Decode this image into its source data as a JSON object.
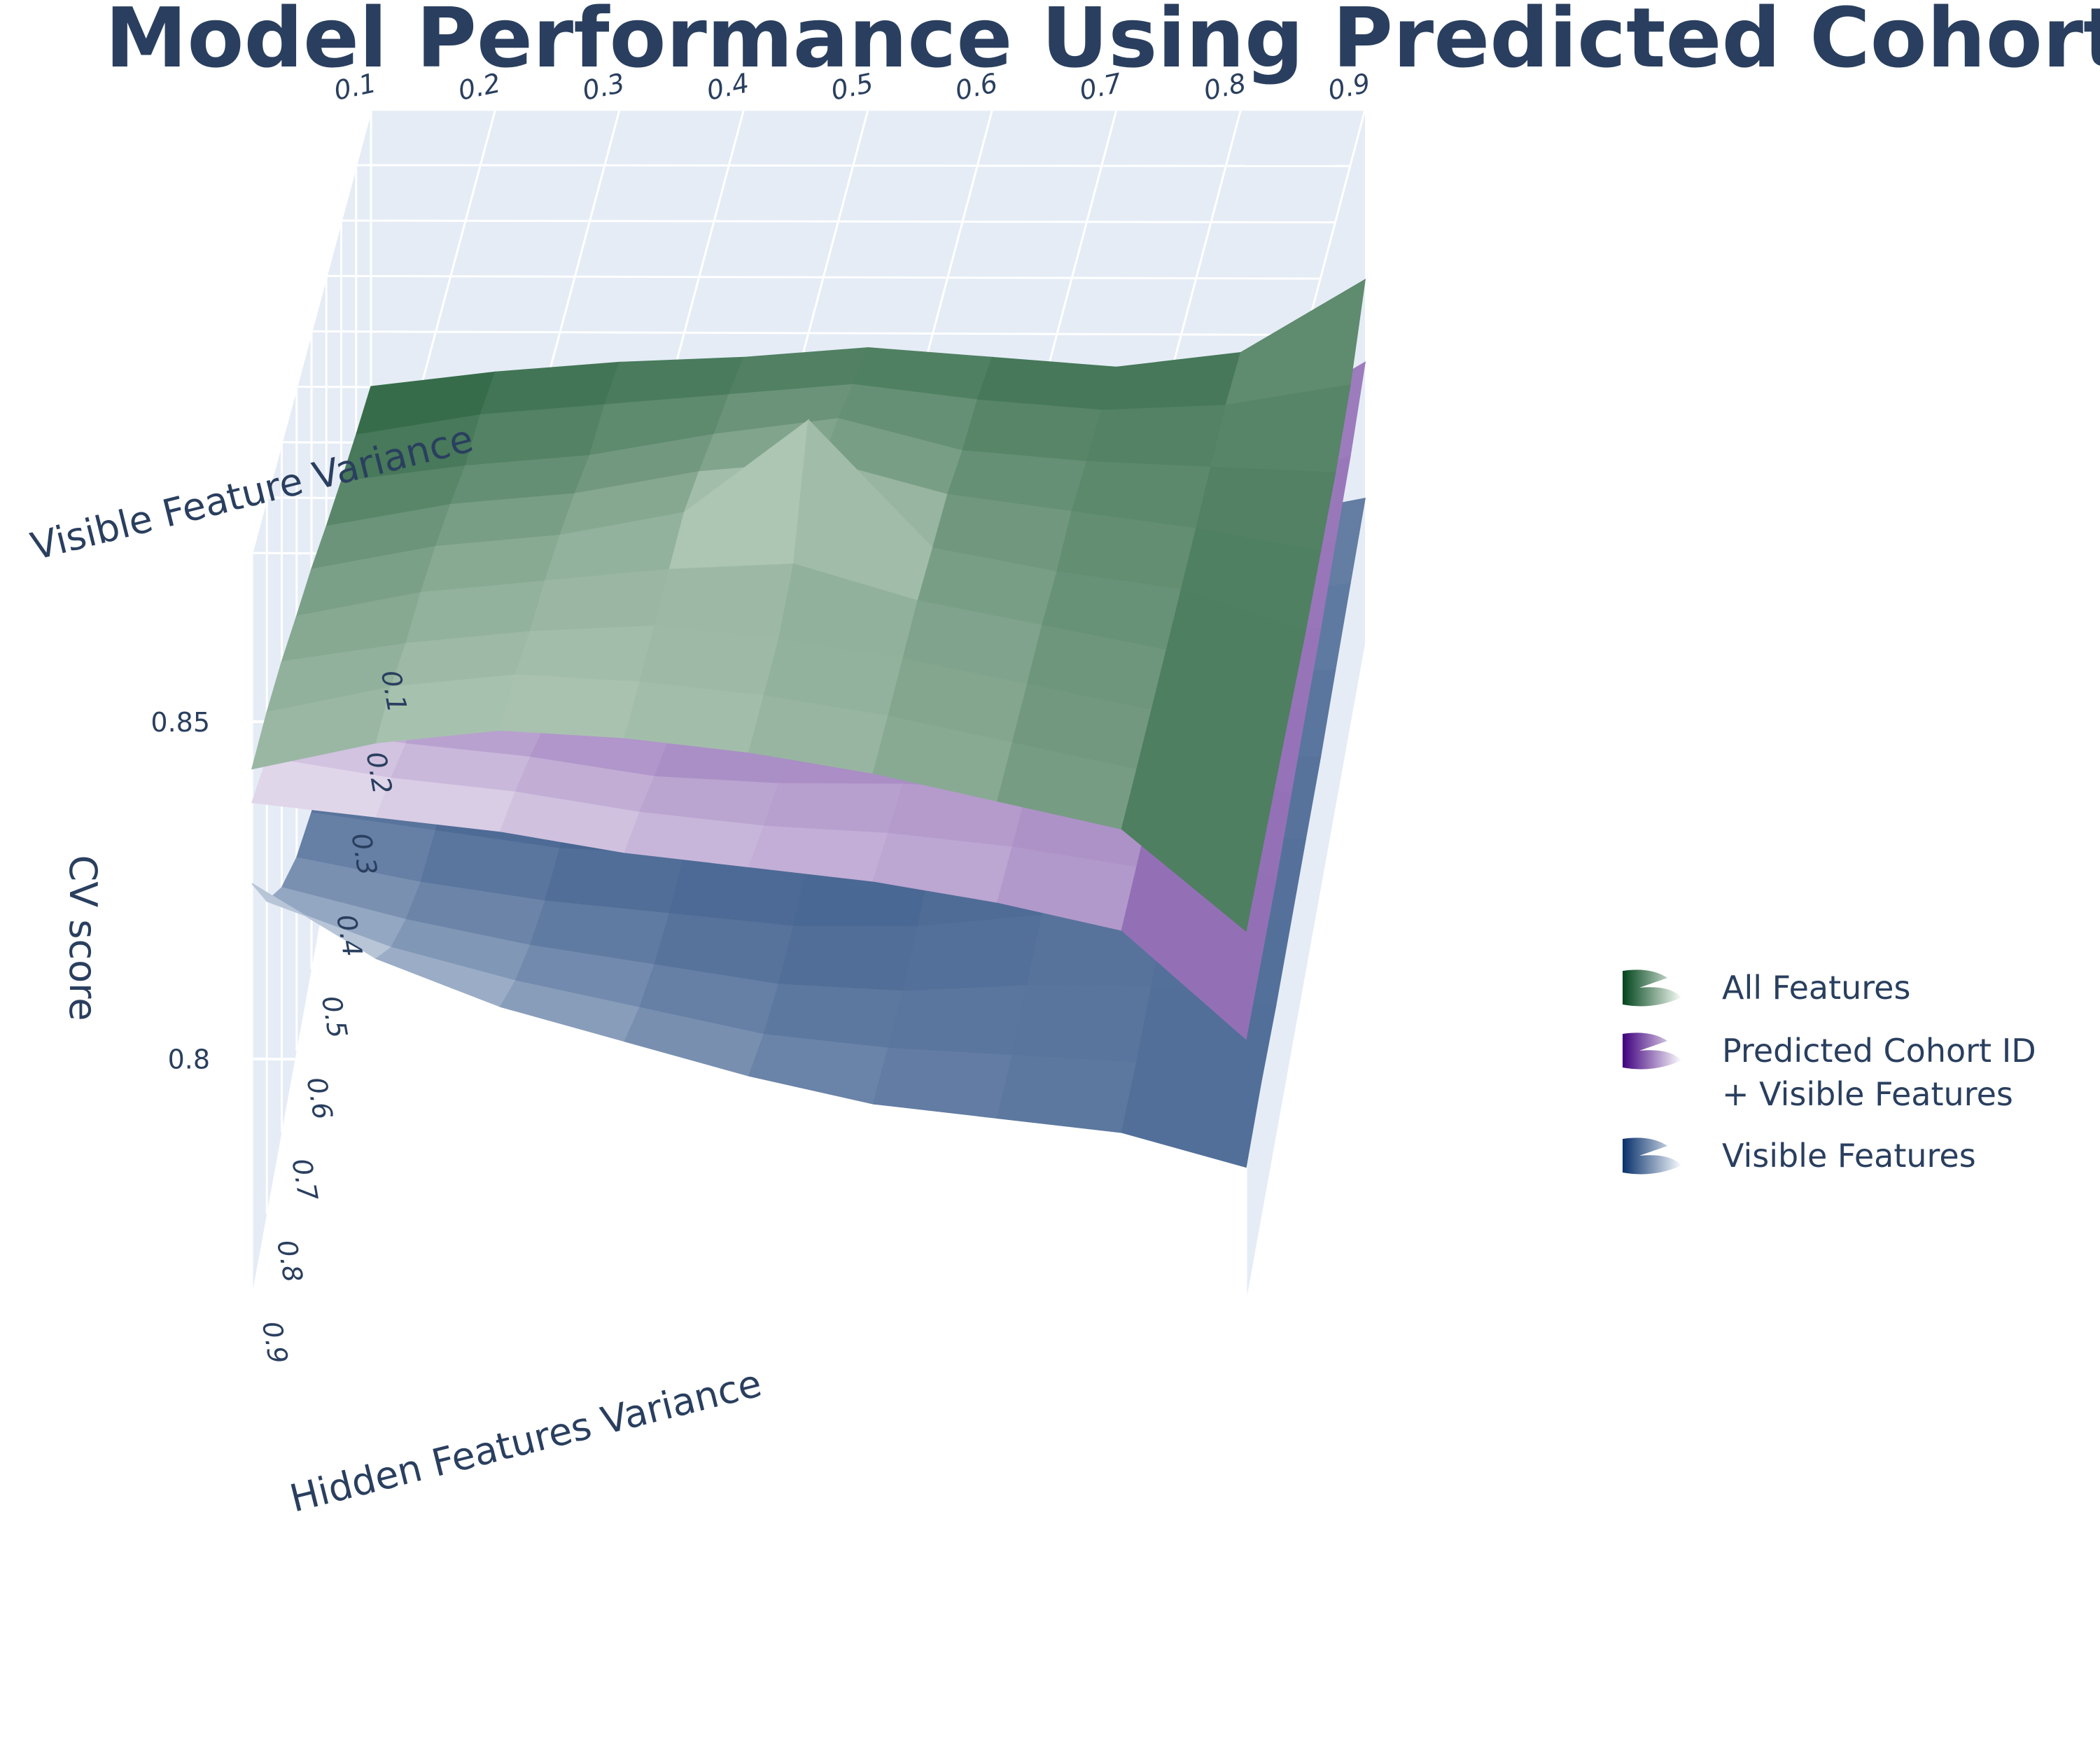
{
  "chart_data": {
    "type": "surface",
    "title": "Model Performance Using Predicted Cohort",
    "zlabel": "CV score",
    "xlabel": "Hidden Features Variance",
    "ylabel": "Visible Feature Variance",
    "x_ticks": [
      "0.1",
      "0.2",
      "0.3",
      "0.4",
      "0.5",
      "0.6",
      "0.7",
      "0.8",
      "0.9"
    ],
    "y_ticks": [
      "0.1",
      "0.2",
      "0.3",
      "0.4",
      "0.5",
      "0.6",
      "0.7",
      "0.8",
      "0.9"
    ],
    "z_ticks": [
      "0.8",
      "0.85"
    ],
    "zlim": [
      0.765,
      0.875
    ],
    "x_values": [
      0.1,
      0.2,
      0.3,
      0.4,
      0.5,
      0.6,
      0.7,
      0.8,
      0.9
    ],
    "y_values": [
      0.1,
      0.2,
      0.3,
      0.4,
      0.5,
      0.6,
      0.7,
      0.8,
      0.9
    ],
    "legend_position": "right",
    "series": [
      {
        "name": "All Features",
        "colors": [
          "#00441b",
          "#f7fcf5"
        ],
        "z": [
          [
            0.818,
            0.821,
            0.823,
            0.824,
            0.826,
            0.824,
            0.822,
            0.825,
            0.84
          ],
          [
            0.822,
            0.826,
            0.828,
            0.83,
            0.832,
            0.829,
            0.827,
            0.828,
            0.832
          ],
          [
            0.826,
            0.829,
            0.831,
            0.835,
            0.838,
            0.832,
            0.83,
            0.829,
            0.828
          ],
          [
            0.83,
            0.834,
            0.836,
            0.84,
            0.842,
            0.836,
            0.833,
            0.83,
            0.826
          ],
          [
            0.834,
            0.838,
            0.84,
            0.844,
            0.86,
            0.838,
            0.834,
            0.831,
            0.824
          ],
          [
            0.837,
            0.841,
            0.843,
            0.845,
            0.846,
            0.84,
            0.836,
            0.832,
            0.823
          ],
          [
            0.84,
            0.843,
            0.845,
            0.846,
            0.844,
            0.841,
            0.837,
            0.833,
            0.822
          ],
          [
            0.842,
            0.846,
            0.848,
            0.847,
            0.845,
            0.842,
            0.838,
            0.834,
            0.821
          ],
          [
            0.843,
            0.847,
            0.849,
            0.848,
            0.846,
            0.843,
            0.839,
            0.835,
            0.82
          ]
        ]
      },
      {
        "name": "Predicted Cohort ID + Visible Features",
        "colors": [
          "#3f007d",
          "#fcfbfd"
        ],
        "z": [
          [
            0.805,
            0.8,
            0.797,
            0.796,
            0.795,
            0.797,
            0.8,
            0.808,
            0.823
          ],
          [
            0.808,
            0.804,
            0.801,
            0.8,
            0.799,
            0.801,
            0.804,
            0.81,
            0.818
          ],
          [
            0.812,
            0.808,
            0.805,
            0.804,
            0.803,
            0.805,
            0.808,
            0.812,
            0.815
          ],
          [
            0.816,
            0.812,
            0.809,
            0.808,
            0.807,
            0.809,
            0.812,
            0.814,
            0.812
          ],
          [
            0.82,
            0.817,
            0.814,
            0.812,
            0.811,
            0.813,
            0.815,
            0.816,
            0.81
          ],
          [
            0.825,
            0.822,
            0.819,
            0.817,
            0.816,
            0.817,
            0.818,
            0.817,
            0.808
          ],
          [
            0.83,
            0.827,
            0.825,
            0.822,
            0.821,
            0.821,
            0.82,
            0.818,
            0.806
          ],
          [
            0.835,
            0.832,
            0.83,
            0.827,
            0.825,
            0.824,
            0.822,
            0.819,
            0.805
          ],
          [
            0.838,
            0.836,
            0.834,
            0.831,
            0.829,
            0.827,
            0.824,
            0.82,
            0.804
          ]
        ]
      },
      {
        "name": "Visible Features",
        "colors": [
          "#08306b",
          "#f7fbff"
        ],
        "z": [
          [
            0.783,
            0.78,
            0.778,
            0.777,
            0.778,
            0.781,
            0.784,
            0.79,
            0.795
          ],
          [
            0.785,
            0.782,
            0.78,
            0.779,
            0.78,
            0.782,
            0.785,
            0.79,
            0.793
          ],
          [
            0.787,
            0.784,
            0.782,
            0.781,
            0.781,
            0.783,
            0.786,
            0.79,
            0.791
          ],
          [
            0.789,
            0.786,
            0.784,
            0.783,
            0.782,
            0.784,
            0.787,
            0.789,
            0.789
          ],
          [
            0.792,
            0.789,
            0.786,
            0.785,
            0.784,
            0.785,
            0.787,
            0.789,
            0.788
          ],
          [
            0.797,
            0.793,
            0.79,
            0.788,
            0.786,
            0.786,
            0.788,
            0.789,
            0.787
          ],
          [
            0.804,
            0.799,
            0.795,
            0.792,
            0.789,
            0.788,
            0.789,
            0.789,
            0.786
          ],
          [
            0.813,
            0.806,
            0.801,
            0.797,
            0.793,
            0.791,
            0.79,
            0.789,
            0.786
          ],
          [
            0.826,
            0.815,
            0.808,
            0.803,
            0.798,
            0.794,
            0.792,
            0.79,
            0.785
          ]
        ]
      }
    ]
  },
  "legend": {
    "items": [
      {
        "label_lines": [
          "All Features"
        ],
        "icon": "surface-swatch-icon",
        "colors": [
          "#00441b",
          "#f7fcf5"
        ]
      },
      {
        "label_lines": [
          "Predicted Cohort ID",
          "+ Visible Features"
        ],
        "icon": "surface-swatch-icon",
        "colors": [
          "#3f007d",
          "#fcfbfd"
        ]
      },
      {
        "label_lines": [
          "Visible Features"
        ],
        "icon": "surface-swatch-icon",
        "colors": [
          "#08306b",
          "#f7fbff"
        ]
      }
    ]
  }
}
